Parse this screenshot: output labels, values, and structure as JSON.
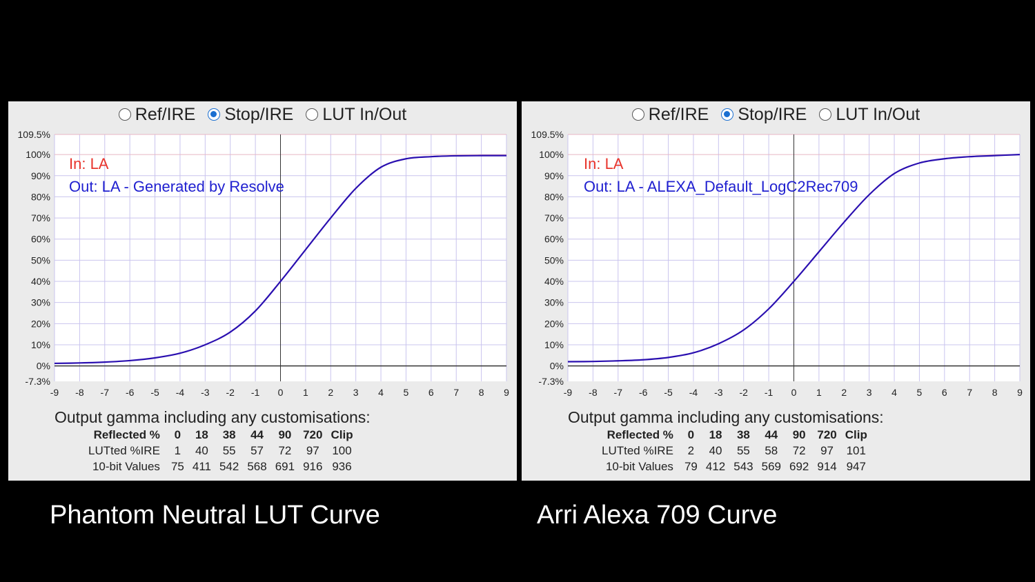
{
  "radio_options": [
    {
      "label": "Ref/IRE",
      "selected": false
    },
    {
      "label": "Stop/IRE",
      "selected": true
    },
    {
      "label": "LUT In/Out",
      "selected": false
    }
  ],
  "colors": {
    "curve": "#2a0fb0",
    "in_label": "#e8342c",
    "out_label": "#2020d0",
    "grid": "#c9c4ee",
    "background": "#000000",
    "panel": "#ebebeb"
  },
  "panels": [
    {
      "in_label": "In: LA",
      "out_label": "Out: LA - Generated by Resolve",
      "summary_title": "Output gamma including any customisations:",
      "table": {
        "headers": [
          "Reflected %",
          "0",
          "18",
          "38",
          "44",
          "90",
          "720",
          "Clip"
        ],
        "rows": [
          {
            "label": "LUTted %IRE",
            "values": [
              "1",
              "40",
              "55",
              "57",
              "72",
              "97",
              "100"
            ]
          },
          {
            "label": "10-bit Values",
            "values": [
              "75",
              "411",
              "542",
              "568",
              "691",
              "916",
              "936"
            ]
          }
        ]
      },
      "caption": "Phantom Neutral LUT Curve"
    },
    {
      "in_label": "In: LA",
      "out_label": "Out: LA - ALEXA_Default_LogC2Rec709",
      "summary_title": "Output gamma including any customisations:",
      "table": {
        "headers": [
          "Reflected %",
          "0",
          "18",
          "38",
          "44",
          "90",
          "720",
          "Clip"
        ],
        "rows": [
          {
            "label": "LUTted %IRE",
            "values": [
              "2",
              "40",
              "55",
              "58",
              "72",
              "97",
              "101"
            ]
          },
          {
            "label": "10-bit Values",
            "values": [
              "79",
              "412",
              "543",
              "569",
              "692",
              "914",
              "947"
            ]
          }
        ]
      },
      "caption": "Arri Alexa 709 Curve"
    }
  ],
  "chart_data": [
    {
      "type": "line",
      "x_ticks": [
        "-9",
        "-8",
        "-7",
        "-6",
        "-5",
        "-4",
        "-3",
        "-2",
        "-1",
        "0",
        "1",
        "2",
        "3",
        "4",
        "5",
        "6",
        "7",
        "8",
        "9"
      ],
      "y_ticks": [
        "-7.3%",
        "0%",
        "10%",
        "20%",
        "30%",
        "40%",
        "50%",
        "60%",
        "70%",
        "80%",
        "90%",
        "100%",
        "109.5%"
      ],
      "xlim": [
        -9,
        9
      ],
      "ylim": [
        -7.3,
        109.5
      ],
      "grid": true,
      "series": [
        {
          "x": [
            -9,
            -8,
            -7,
            -6,
            -5,
            -4,
            -3,
            -2,
            -1,
            0,
            1,
            2,
            3,
            4,
            5,
            6,
            7,
            8,
            9
          ],
          "y": [
            1.2,
            1.4,
            1.8,
            2.5,
            3.8,
            6,
            10,
            16,
            26,
            40,
            55,
            70,
            84,
            94,
            98,
            99,
            99.4,
            99.5,
            99.5
          ]
        }
      ]
    },
    {
      "type": "line",
      "x_ticks": [
        "-9",
        "-8",
        "-7",
        "-6",
        "-5",
        "-4",
        "-3",
        "-2",
        "-1",
        "0",
        "1",
        "2",
        "3",
        "4",
        "5",
        "6",
        "7",
        "8",
        "9"
      ],
      "y_ticks": [
        "-7.3%",
        "0%",
        "10%",
        "20%",
        "30%",
        "40%",
        "50%",
        "60%",
        "70%",
        "80%",
        "90%",
        "100%",
        "109.5%"
      ],
      "xlim": [
        -9,
        9
      ],
      "ylim": [
        -7.3,
        109.5
      ],
      "grid": true,
      "series": [
        {
          "x": [
            -9,
            -8,
            -7,
            -6,
            -5,
            -4,
            -3,
            -2,
            -1,
            0,
            1,
            2,
            3,
            4,
            5,
            6,
            7,
            8,
            9
          ],
          "y": [
            2,
            2.1,
            2.4,
            2.9,
            4,
            6.2,
            10.5,
            17,
            27,
            40,
            54,
            68,
            81,
            91,
            96,
            98,
            99,
            99.5,
            100
          ]
        }
      ]
    }
  ]
}
